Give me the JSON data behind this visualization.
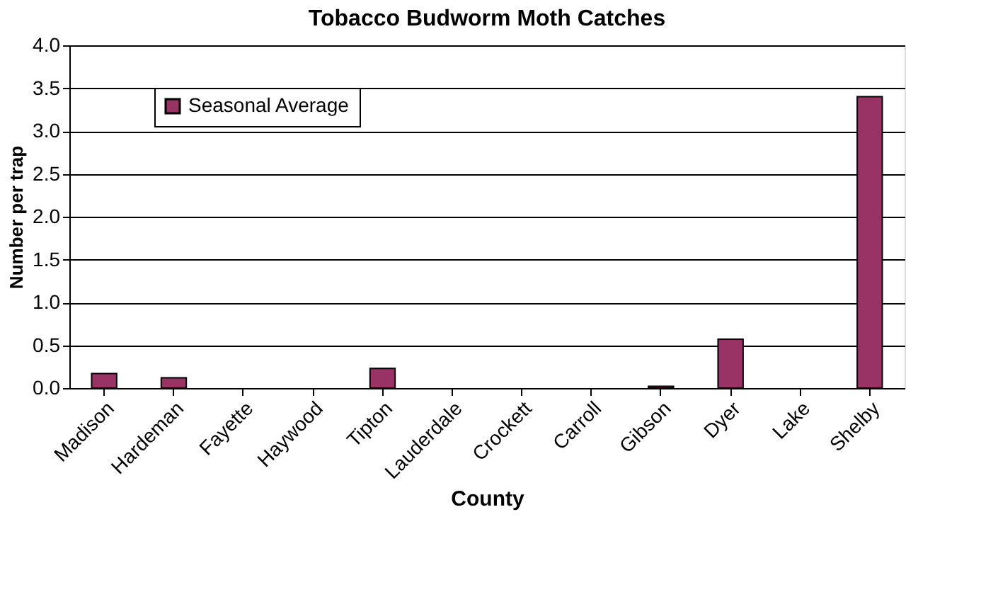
{
  "chart_data": {
    "type": "bar",
    "title": "Tobacco Budworm Moth Catches",
    "xlabel": "County",
    "ylabel": "Number per trap",
    "categories": [
      "Madison",
      "Hardeman",
      "Fayette",
      "Haywood",
      "Tipton",
      "Lauderdale",
      "Crockett",
      "Carroll",
      "Gibson",
      "Dyer",
      "Lake",
      "Shelby"
    ],
    "series": [
      {
        "name": "Seasonal Average",
        "color": "#993366",
        "values": [
          0.17,
          0.12,
          0,
          0,
          0.23,
          0,
          0,
          0,
          0.02,
          0.57,
          0,
          3.4
        ]
      }
    ],
    "ylim": [
      0,
      4
    ],
    "yticks": [
      {
        "value": 0,
        "label": "0.0"
      },
      {
        "value": 0.5,
        "label": "0.5"
      },
      {
        "value": 1,
        "label": "1.0"
      },
      {
        "value": 1.5,
        "label": "1.5"
      },
      {
        "value": 2,
        "label": "2.0"
      },
      {
        "value": 2.5,
        "label": "2.5"
      },
      {
        "value": 3,
        "label": "3.0"
      },
      {
        "value": 3.5,
        "label": "3.5"
      },
      {
        "value": 4,
        "label": "4.0"
      }
    ],
    "grid": "y",
    "legend": "top left"
  }
}
